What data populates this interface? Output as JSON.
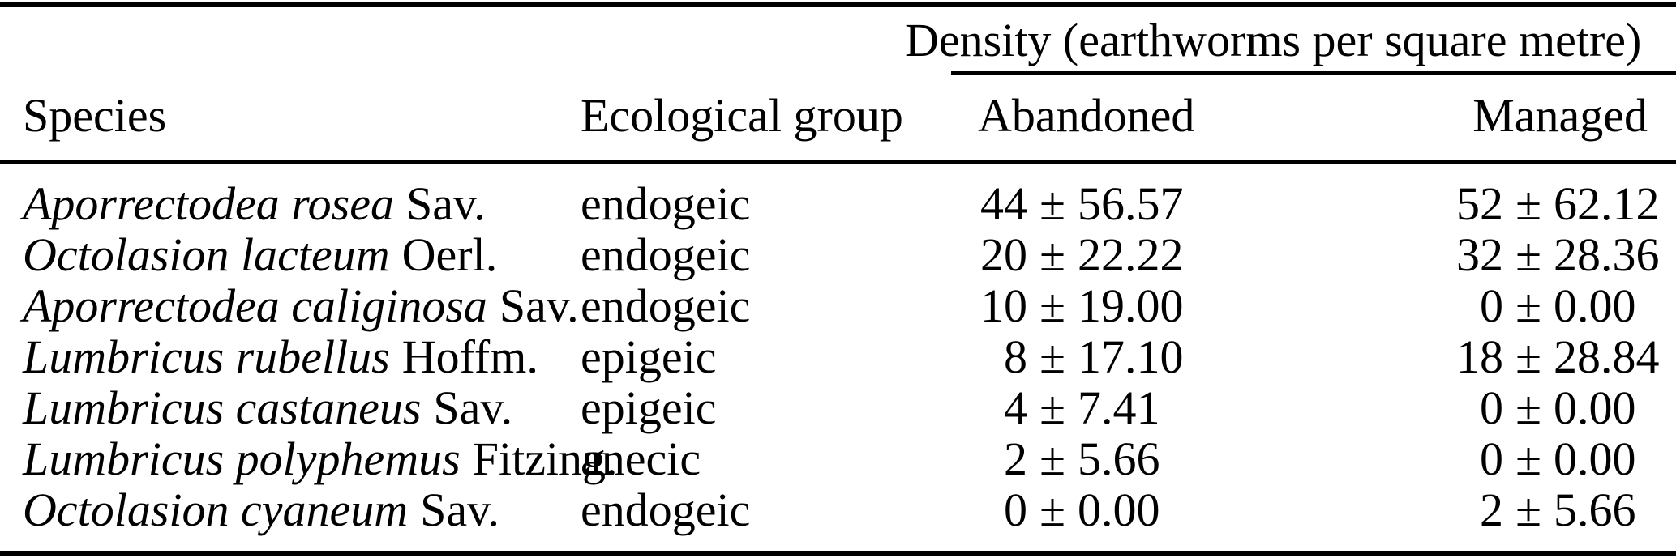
{
  "table": {
    "spanner_header": "Density (earthworms per square metre)",
    "plus_minus": "±",
    "columns": {
      "species": "Species",
      "group": "Ecological group",
      "abandoned": "Abandoned",
      "managed": "Managed"
    },
    "rows": [
      {
        "species": "Aporrectodea rosea",
        "authority": "Sav.",
        "group": "endogeic",
        "abandoned": {
          "mean": "44",
          "sd": "56.57"
        },
        "managed": {
          "mean": "52",
          "sd": "62.12"
        }
      },
      {
        "species": "Octolasion lacteum",
        "authority": "Oerl.",
        "group": "endogeic",
        "abandoned": {
          "mean": "20",
          "sd": "22.22"
        },
        "managed": {
          "mean": "32",
          "sd": "28.36"
        }
      },
      {
        "species": "Aporrectodea caliginosa",
        "authority": "Sav.",
        "group": "endogeic",
        "abandoned": {
          "mean": "10",
          "sd": "19.00"
        },
        "managed": {
          "mean": "0",
          "sd": "0.00"
        }
      },
      {
        "species": "Lumbricus rubellus",
        "authority": "Hoffm.",
        "group": "epigeic",
        "abandoned": {
          "mean": "8",
          "sd": "17.10"
        },
        "managed": {
          "mean": "18",
          "sd": "28.84"
        }
      },
      {
        "species": "Lumbricus castaneus",
        "authority": "Sav.",
        "group": "epigeic",
        "abandoned": {
          "mean": "4",
          "sd": "7.41"
        },
        "managed": {
          "mean": "0",
          "sd": "0.00"
        }
      },
      {
        "species": "Lumbricus polyphemus",
        "authority": "Fitzing.",
        "group": "anecic",
        "abandoned": {
          "mean": "2",
          "sd": "5.66"
        },
        "managed": {
          "mean": "0",
          "sd": "0.00"
        }
      },
      {
        "species": "Octolasion cyaneum",
        "authority": "Sav.",
        "group": "endogeic",
        "abandoned": {
          "mean": "0",
          "sd": "0.00"
        },
        "managed": {
          "mean": "2",
          "sd": "5.66"
        }
      }
    ],
    "colors": {
      "text": "#000000",
      "background": "#ffffff",
      "rule": "#000000"
    }
  },
  "chart_data": {
    "type": "table",
    "title": "Density (earthworms per square metre)",
    "columns": [
      "Species",
      "Ecological group",
      "Abandoned",
      "Managed"
    ],
    "series": [
      {
        "name": "Abandoned",
        "values": [
          44,
          20,
          10,
          8,
          4,
          2,
          0
        ],
        "sd": [
          56.57,
          22.22,
          19.0,
          17.1,
          7.41,
          5.66,
          0.0
        ]
      },
      {
        "name": "Managed",
        "values": [
          52,
          32,
          0,
          18,
          0,
          0,
          2
        ],
        "sd": [
          62.12,
          28.36,
          0.0,
          28.84,
          0.0,
          0.0,
          5.66
        ]
      }
    ],
    "categories": [
      "Aporrectodea rosea Sav.",
      "Octolasion lacteum Oerl.",
      "Aporrectodea caliginosa Sav.",
      "Lumbricus rubellus Hoffm.",
      "Lumbricus castaneus Sav.",
      "Lumbricus polyphemus Fitzing.",
      "Octolasion cyaneum Sav."
    ],
    "ecological_groups": [
      "endogeic",
      "endogeic",
      "endogeic",
      "epigeic",
      "epigeic",
      "anecic",
      "endogeic"
    ]
  }
}
